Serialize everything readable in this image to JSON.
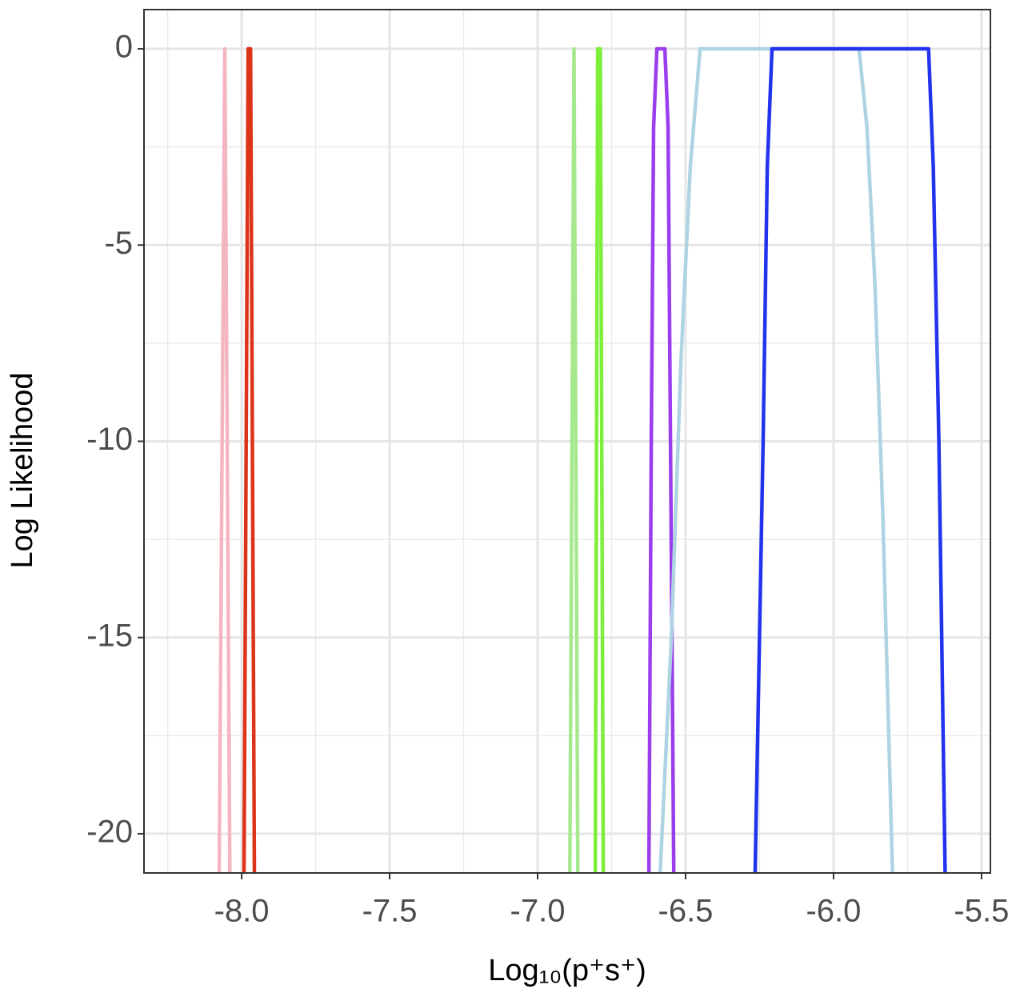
{
  "chart_data": {
    "type": "line",
    "x_label": "Log₁₀(p⁺s⁺)",
    "y_label": "Log Likelihood",
    "xlim": [
      -8.33,
      -5.47
    ],
    "ylim": [
      -21,
      1
    ],
    "xticks": [
      {
        "value": -8,
        "label": "-8.0"
      },
      -7.5,
      {
        "value": -7,
        "label": "-7.0"
      },
      -6.5,
      {
        "value": -6,
        "label": "-6.0"
      },
      -5.5
    ],
    "yticks": [
      0,
      -5,
      -10,
      -15,
      -20
    ],
    "grid": true,
    "series": [
      {
        "color": "#f2b5c1",
        "x": [
          -8.076,
          -8.057,
          -8.04
        ],
        "values": [
          -21,
          0,
          -21
        ]
      },
      {
        "color": "#dd3318",
        "x": [
          -7.992,
          -7.978,
          -7.97,
          -7.957
        ],
        "values": [
          -21,
          0,
          0,
          -21
        ]
      },
      {
        "color": "#a6e88e",
        "x": [
          -6.891,
          -6.877,
          -6.864
        ],
        "values": [
          -21,
          0,
          -21
        ]
      },
      {
        "color": "#7def3a",
        "x": [
          -6.805,
          -6.797,
          -6.788,
          -6.778
        ],
        "values": [
          -21,
          0,
          0,
          -21
        ]
      },
      {
        "color": "#9a3ded",
        "x": [
          -6.624,
          -6.616,
          -6.608,
          -6.597,
          -6.57,
          -6.559,
          -6.551,
          -6.54
        ],
        "values": [
          -21,
          -10,
          -2,
          0,
          0,
          -2,
          -10,
          -21
        ]
      },
      {
        "color": "#aed4e3",
        "x": [
          -6.586,
          -6.548,
          -6.516,
          -6.484,
          -6.451,
          -5.914,
          -5.887,
          -5.86,
          -5.833,
          -5.801
        ],
        "values": [
          -21,
          -15,
          -8,
          -3,
          0,
          0,
          -2,
          -6,
          -12,
          -21
        ]
      },
      {
        "color": "#2233ee",
        "x": [
          -6.265,
          -6.238,
          -6.224,
          -6.208,
          -5.679,
          -5.663,
          -5.644,
          -5.623
        ],
        "values": [
          -21,
          -10,
          -3,
          0,
          0,
          -3,
          -10,
          -21
        ]
      }
    ]
  }
}
